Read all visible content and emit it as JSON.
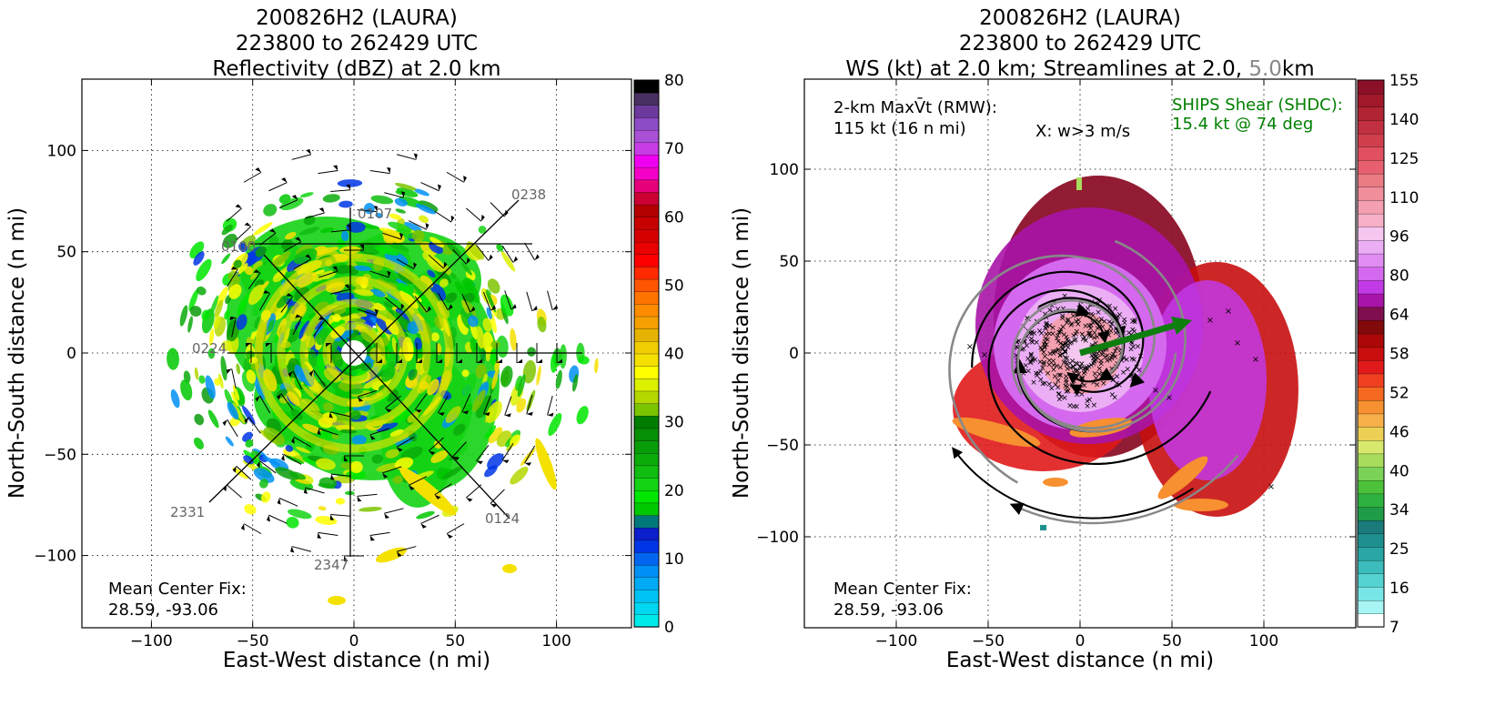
{
  "left_panel": {
    "title_line1": "200826H2 (LAURA)",
    "title_line2": "223800 to 262429 UTC",
    "title_line3": "Reflectivity (dBZ) at 2.0 km",
    "xlabel": "East-West distance (n mi)",
    "ylabel": "North-South distance (n mi)",
    "x_ticks": [
      "−100",
      "−50",
      "0",
      "50",
      "100"
    ],
    "y_ticks": [
      "100",
      "50",
      "0",
      "−50",
      "−100"
    ],
    "center_fix_label": "Mean Center Fix:",
    "center_fix_value": "28.59, -93.06",
    "track_labels": [
      "0238",
      "0107",
      "0224",
      "2331",
      "2347",
      "0124"
    ],
    "colorbar_ticks": [
      "80",
      "70",
      "60",
      "50",
      "40",
      "30",
      "20",
      "10",
      "0"
    ],
    "colorbar_colors": [
      "#00eaea",
      "#00d7f0",
      "#00c3f5",
      "#00aaf5",
      "#0090f5",
      "#0066f0",
      "#0035e6",
      "#0b1fcc",
      "#00787a",
      "#00c800",
      "#00e600",
      "#14d314",
      "#10bd10",
      "#0aab0a",
      "#099c09",
      "#078e07",
      "#007d00",
      "#7dc400",
      "#b4d700",
      "#dcf000",
      "#ffff00",
      "#f5e100",
      "#f0cd00",
      "#e6b400",
      "#f5a000",
      "#ff8c00",
      "#ff7300",
      "#ff5500",
      "#ff2a00",
      "#ff0000",
      "#ea0000",
      "#d70000",
      "#c80000",
      "#b40000",
      "#cc0033",
      "#e6007a",
      "#f500c8",
      "#f000f0",
      "#c83ce6",
      "#aa50d7",
      "#8c4cc6",
      "#6c3a9c",
      "#483060",
      "#000000"
    ]
  },
  "right_panel": {
    "title_line1": "200826H2 (LAURA)",
    "title_line2": "223800 to 262429 UTC",
    "title_line3a": "WS (kt) at 2.0 km; Streamlines at 2.0, ",
    "title_line3b": "5.0",
    "title_line3c": "km",
    "xlabel": "East-West distance (n mi)",
    "ylabel": "North-South distance (n mi)",
    "x_ticks": [
      "−100",
      "−50",
      "0",
      "50",
      "100"
    ],
    "y_ticks": [
      "100",
      "50",
      "0",
      "−50",
      "−100"
    ],
    "maxvt_label": "2-km MaxV̄t (RMW):",
    "maxvt_value": "115 kt (16 n mi)",
    "w_note": "X: w>3 m/s",
    "shear_label": "SHIPS Shear (SHDC):",
    "shear_value": "15.4 kt @ 74 deg",
    "center_fix_label": "Mean Center Fix:",
    "center_fix_value": "28.59, -93.06",
    "colorbar_ticks": [
      "155",
      "140",
      "125",
      "110",
      "96",
      "80",
      "64",
      "58",
      "52",
      "46",
      "40",
      "34",
      "25",
      "16",
      "7"
    ],
    "colorbar_colors": [
      "#ffffff",
      "#a8f5f5",
      "#78e6e6",
      "#55d2d2",
      "#3cbcbc",
      "#2aa6a6",
      "#1f9090",
      "#1b7a7a",
      "#1f9c48",
      "#2eb23f",
      "#4cc23a",
      "#7ad257",
      "#a8dc5c",
      "#d8e86c",
      "#ecd055",
      "#f7b04a",
      "#f79030",
      "#f56a20",
      "#f04020",
      "#e01a1a",
      "#c80e0e",
      "#ac0808",
      "#820a0a",
      "#7e0e4e",
      "#a814a8",
      "#c23ae6",
      "#d468ee",
      "#e08cf2",
      "#ebaef5",
      "#f4c6f0",
      "#f7b0c8",
      "#f4a0b0",
      "#f08e9c",
      "#ec7c84",
      "#e86070",
      "#e05060",
      "#d0404c",
      "#c03040",
      "#b02434",
      "#a0182a",
      "#8c1028"
    ]
  },
  "colors": {
    "shear_text": "#008000",
    "shear_arrow": "#0e7e0e",
    "track_label": "#666666",
    "title_gray": "#888888"
  },
  "chart_data": [
    {
      "type": "heatmap",
      "title": "200826H2 (LAURA) 223800 to 262429 UTC Reflectivity (dBZ) at 2.0 km",
      "xlabel": "East-West distance (n mi)",
      "ylabel": "North-South distance (n mi)",
      "xlim": [
        -135,
        135
      ],
      "ylim": [
        -135,
        135
      ],
      "grid": true,
      "colorbar_range": [
        0,
        80
      ],
      "center_fix": [
        28.59,
        -93.06
      ]
    },
    {
      "type": "heatmap",
      "title": "200826H2 (LAURA) 223800 to 262429 UTC WS (kt) at 2.0 km; Streamlines at 2.0, 5.0km",
      "xlabel": "East-West distance (n mi)",
      "ylabel": "North-South distance (n mi)",
      "xlim": [
        -150,
        150
      ],
      "ylim": [
        -150,
        150
      ],
      "grid": true,
      "colorbar_ticks": [
        7,
        16,
        25,
        34,
        40,
        46,
        52,
        58,
        64,
        80,
        96,
        110,
        125,
        140,
        155
      ],
      "max_vt_kt": 115,
      "rmw_nmi": 16,
      "shear_kt": 15.4,
      "shear_dir_deg": 74,
      "center_fix": [
        28.59,
        -93.06
      ]
    }
  ]
}
